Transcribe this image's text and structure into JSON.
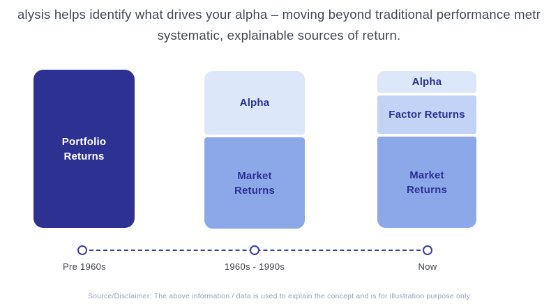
{
  "header": {
    "line1": "alysis helps identify what drives your alpha – moving beyond traditional performance metr",
    "line2": "systematic, explainable sources of return."
  },
  "diagram": {
    "columns": [
      {
        "timeline_label": "Pre 1960s",
        "segments": [
          {
            "label": "Portfolio\nReturns",
            "color": "#2d3192",
            "text_color": "#ffffff"
          }
        ]
      },
      {
        "timeline_label": "1960s - 1990s",
        "segments": [
          {
            "label": "Alpha",
            "color": "#dce7fa",
            "text_color": "#2b3193"
          },
          {
            "label": "Market\nReturns",
            "color": "#8da8e9",
            "text_color": "#2b3193"
          }
        ]
      },
      {
        "timeline_label": "Now",
        "segments": [
          {
            "label": "Alpha",
            "color": "#dce7fa",
            "text_color": "#2b3193"
          },
          {
            "label": "Factor Returns",
            "color": "#c2d3f5",
            "text_color": "#2b3193"
          },
          {
            "label": "Market\nReturns",
            "color": "#8da8e9",
            "text_color": "#2b3193"
          }
        ]
      }
    ],
    "timeline_accent_color": "#3b41a8"
  },
  "footer": {
    "disclaimer": "Source/Disclaimer: The above information / data is used to explain the concept and is for illustration purpose only"
  }
}
